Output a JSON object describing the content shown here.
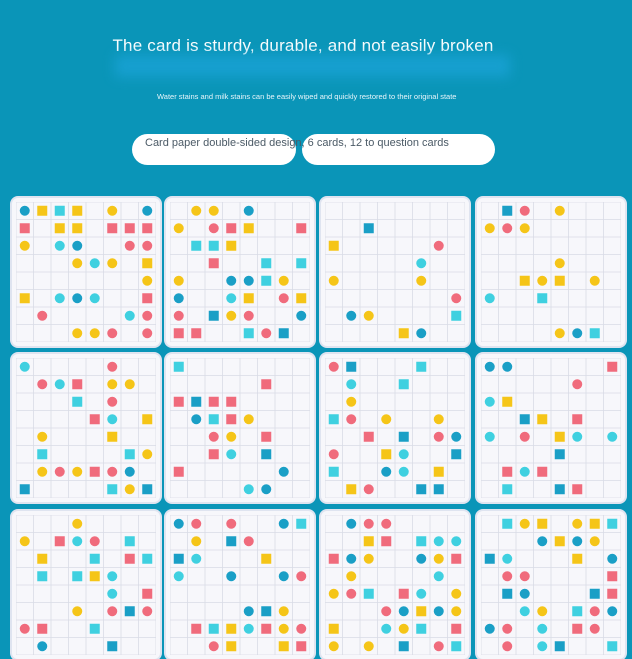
{
  "header": {
    "title": "The card is sturdy, durable, and not easily broken",
    "subtitle": "Water stains and milk stains can be easily wiped and quickly restored to their original state",
    "feature_pill": "Card paper double-sided design, 6 cards, 12 to question cards"
  },
  "colors": {
    "background": "#0a95b8",
    "pink": "#f06b7c",
    "yellow": "#f5c518",
    "teal": "#1a9fc6",
    "cyan": "#3fd0e0"
  },
  "cards": {
    "count": 12
  }
}
